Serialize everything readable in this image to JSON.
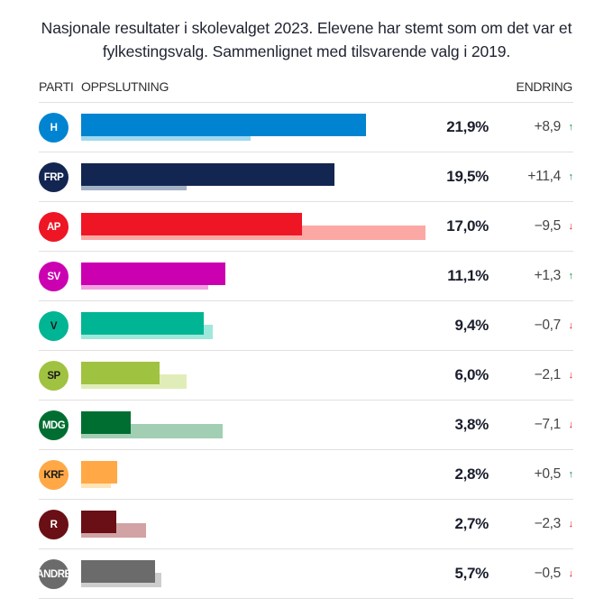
{
  "chart_data": {
    "type": "bar",
    "orientation": "horizontal",
    "title": "Nasjonale resultater i skolevalget 2023. Elevene har stemt som om det var et fylkestingsvalg. Sammenlignet med tilsvarende valg i 2019.",
    "columns": {
      "party": "PARTI",
      "support": "OPPSLUTNING",
      "change": "ENDRING"
    },
    "xlim": [
      0,
      27
    ],
    "categories": [
      "H",
      "FRP",
      "AP",
      "SV",
      "V",
      "SP",
      "MDG",
      "KRF",
      "R",
      "ANDRE"
    ],
    "series": [
      {
        "name": "2023",
        "values": [
          21.9,
          19.5,
          17.0,
          11.1,
          9.4,
          6.0,
          3.8,
          2.8,
          2.7,
          5.7
        ]
      },
      {
        "name": "2019",
        "values": [
          13.0,
          8.1,
          26.5,
          9.8,
          10.1,
          8.1,
          10.9,
          2.3,
          5.0,
          6.2
        ]
      }
    ],
    "rows": [
      {
        "party": "H",
        "value_label": "21,9%",
        "change_label": "+8,9",
        "direction": "up",
        "color": "#0084d1",
        "prev_color": "#9ed9f0",
        "badge_text_color": "#ffffff"
      },
      {
        "party": "FRP",
        "value_label": "19,5%",
        "change_label": "+11,4",
        "direction": "up",
        "color": "#132652",
        "prev_color": "#a3b1c4",
        "badge_text_color": "#ffffff"
      },
      {
        "party": "AP",
        "value_label": "17,0%",
        "change_label": "−9,5",
        "direction": "down",
        "color": "#ee1525",
        "prev_color": "#fba8a4",
        "badge_text_color": "#ffffff"
      },
      {
        "party": "SV",
        "value_label": "11,1%",
        "change_label": "+1,3",
        "direction": "up",
        "color": "#cb00b1",
        "prev_color": "#f3a0e0",
        "badge_text_color": "#ffffff"
      },
      {
        "party": "V",
        "value_label": "9,4%",
        "change_label": "−0,7",
        "direction": "down",
        "color": "#00b594",
        "prev_color": "#9ee8db",
        "badge_text_color": "#1a1a1a"
      },
      {
        "party": "SP",
        "value_label": "6,0%",
        "change_label": "−2,1",
        "direction": "down",
        "color": "#a0c241",
        "prev_color": "#e1edb9",
        "badge_text_color": "#1a1a1a"
      },
      {
        "party": "MDG",
        "value_label": "3,8%",
        "change_label": "−7,1",
        "direction": "down",
        "color": "#006e31",
        "prev_color": "#a2cfb3",
        "badge_text_color": "#ffffff"
      },
      {
        "party": "KRF",
        "value_label": "2,8%",
        "change_label": "+0,5",
        "direction": "up",
        "color": "#ffa845",
        "prev_color": "#ffe4b6",
        "badge_text_color": "#1a1a1a"
      },
      {
        "party": "R",
        "value_label": "2,7%",
        "change_label": "−2,3",
        "direction": "down",
        "color": "#6a0f15",
        "prev_color": "#d1a3a4",
        "badge_text_color": "#ffffff"
      },
      {
        "party": "ANDRE",
        "value_label": "5,7%",
        "change_label": "−0,5",
        "direction": "down",
        "color": "#6b6b6b",
        "prev_color": "#cdcdcd",
        "badge_text_color": "#ffffff"
      }
    ],
    "icons": {
      "up": "arrow-up-icon",
      "down": "arrow-down-icon"
    }
  }
}
